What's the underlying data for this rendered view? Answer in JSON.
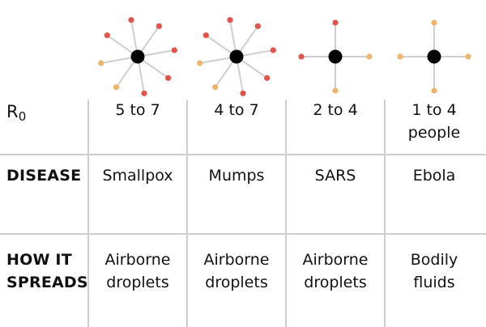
{
  "colors": {
    "infected": "#e4524a",
    "not_infected": "#f0b36b",
    "center": "#000000",
    "grid": "#cfcfcf"
  },
  "row_labels": {
    "r0": {
      "base": "R",
      "sub": "0"
    },
    "disease": "DISEASE",
    "spread_line1": "HOW IT",
    "spread_line2": "SPREADS"
  },
  "columns": [
    {
      "r0_line1": "5 to 7",
      "r0_line2": "",
      "disease": "Smallpox",
      "spread_line1": "Airborne",
      "spread_line2": "droplets",
      "spokes": [
        "red",
        "red",
        "red",
        "red",
        "red",
        "orange",
        "orange",
        "red"
      ]
    },
    {
      "r0_line1": "4 to 7",
      "r0_line2": "",
      "disease": "Mumps",
      "spread_line1": "Airborne",
      "spread_line2": "droplets",
      "spokes": [
        "red",
        "red",
        "red",
        "red",
        "red",
        "orange",
        "orange",
        "red"
      ]
    },
    {
      "r0_line1": "2 to 4",
      "r0_line2": "",
      "disease": "SARS",
      "spread_line1": "Airborne",
      "spread_line2": "droplets",
      "spokes": [
        "red",
        "orange",
        "orange",
        "red"
      ]
    },
    {
      "r0_line1": "1 to 4",
      "r0_line2": "people",
      "disease": "Ebola",
      "spread_line1": "Bodily",
      "spread_line2": "fluids",
      "spokes": [
        "orange",
        "orange",
        "orange",
        "orange"
      ]
    }
  ]
}
